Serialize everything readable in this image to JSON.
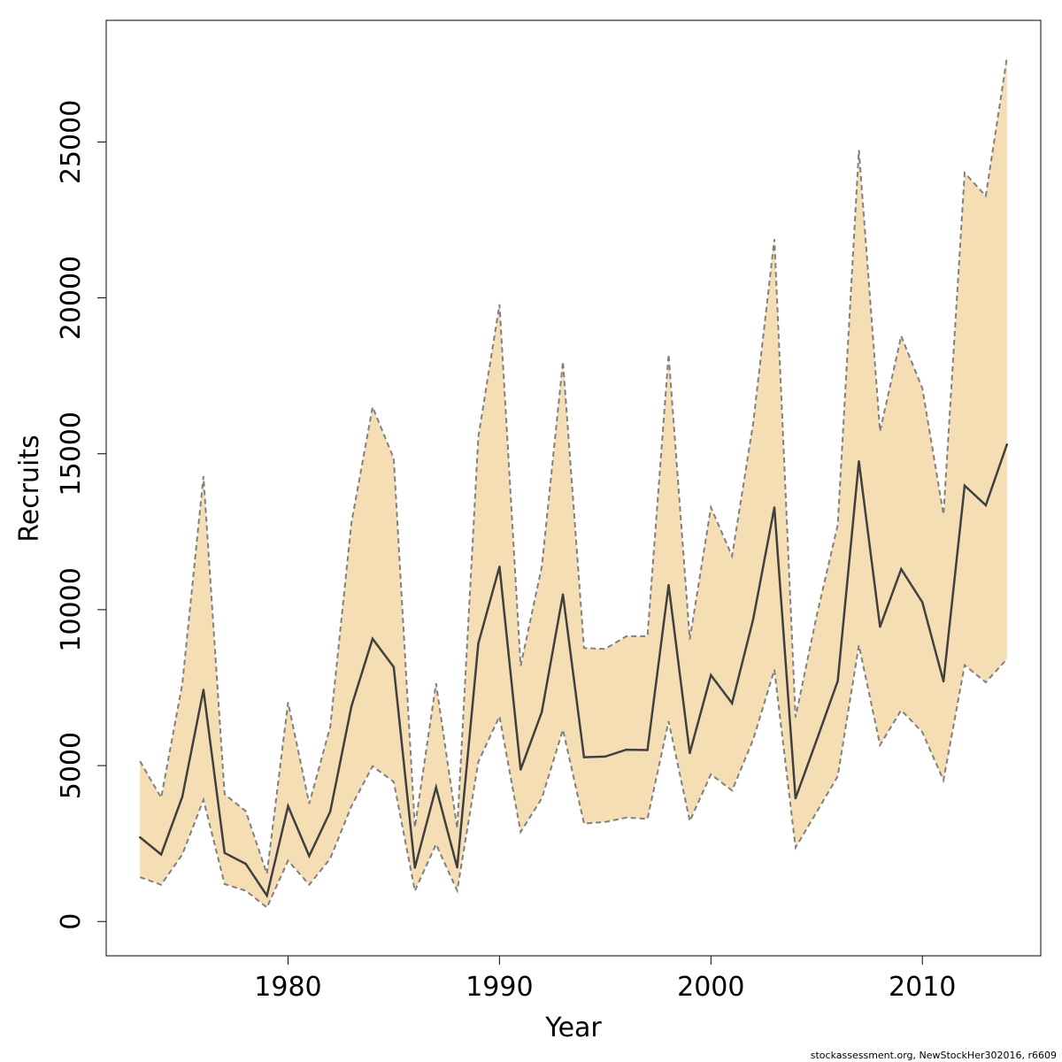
{
  "chart_data": {
    "type": "area",
    "title": "",
    "xlabel": "Year",
    "ylabel": "Recruits",
    "xlim": [
      1971.4,
      2015.6
    ],
    "ylim": [
      -1100,
      28900
    ],
    "x_ticks": [
      1980,
      1990,
      2000,
      2010
    ],
    "y_ticks": [
      0,
      5000,
      10000,
      15000,
      20000,
      25000
    ],
    "grid": false,
    "legend": "none",
    "colors": {
      "band": "#f5deb3",
      "line": "#404040",
      "bounds": "#808080"
    },
    "x": [
      1973,
      1974,
      1975,
      1976,
      1977,
      1978,
      1979,
      1980,
      1981,
      1982,
      1983,
      1984,
      1985,
      1986,
      1987,
      1988,
      1989,
      1990,
      1991,
      1992,
      1993,
      1994,
      1995,
      1996,
      1997,
      1998,
      1999,
      2000,
      2001,
      2002,
      2003,
      2004,
      2005,
      2006,
      2007,
      2008,
      2009,
      2010,
      2011,
      2012,
      2013,
      2014
    ],
    "series": [
      {
        "role": "estimate",
        "values": [
          2700,
          2150,
          4000,
          7430,
          2200,
          1850,
          830,
          3700,
          2100,
          3530,
          6900,
          9070,
          8160,
          1720,
          4300,
          1730,
          8920,
          11380,
          4870,
          6720,
          10490,
          5270,
          5290,
          5510,
          5500,
          10790,
          5400,
          7900,
          7000,
          9700,
          13280,
          3950,
          5820,
          7710,
          14760,
          9450,
          11300,
          10240,
          7700,
          13980,
          13350,
          15300
        ]
      },
      {
        "role": "lower",
        "values": [
          1420,
          1180,
          2150,
          3900,
          1200,
          990,
          450,
          1950,
          1180,
          2020,
          3700,
          4980,
          4480,
          980,
          2480,
          990,
          5120,
          6580,
          2870,
          3950,
          6150,
          3140,
          3190,
          3330,
          3290,
          6420,
          3220,
          4720,
          4200,
          5840,
          8070,
          2370,
          3510,
          4660,
          8860,
          5660,
          6780,
          6070,
          4530,
          8220,
          7670,
          8420
        ]
      },
      {
        "role": "upper",
        "values": [
          5140,
          3970,
          7620,
          14280,
          4080,
          3540,
          1530,
          7030,
          3780,
          6250,
          12790,
          16500,
          14850,
          3020,
          7640,
          2990,
          15540,
          19790,
          8200,
          11380,
          17960,
          8770,
          8740,
          9150,
          9150,
          18190,
          9050,
          13280,
          11720,
          15990,
          21880,
          6550,
          9810,
          12720,
          24740,
          15720,
          18780,
          17100,
          13050,
          24010,
          23270,
          27710
        ]
      }
    ]
  },
  "footer": {
    "credit": "stockassessment.org, NewStockHer302016, r6609"
  }
}
